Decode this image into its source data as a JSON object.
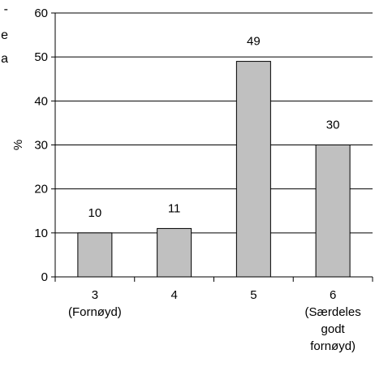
{
  "fragment_text": [
    "-",
    "e",
    "a"
  ],
  "chart_data": {
    "type": "bar",
    "categories": [
      [
        "3",
        "(Fornøyd)"
      ],
      [
        "4"
      ],
      [
        "5"
      ],
      [
        "6",
        "(Særdeles",
        "godt",
        "fornøyd)"
      ]
    ],
    "values": [
      10,
      11,
      49,
      30
    ],
    "data_labels": [
      "10",
      "11",
      "49",
      "30"
    ],
    "ylabel": "%",
    "ylim": [
      0,
      60
    ],
    "yticks": [
      0,
      10,
      20,
      30,
      40,
      50,
      60
    ],
    "grid": true,
    "bar_color": "#c0c0c0",
    "bar_edge_color": "#000000",
    "grid_color": "#000000"
  }
}
